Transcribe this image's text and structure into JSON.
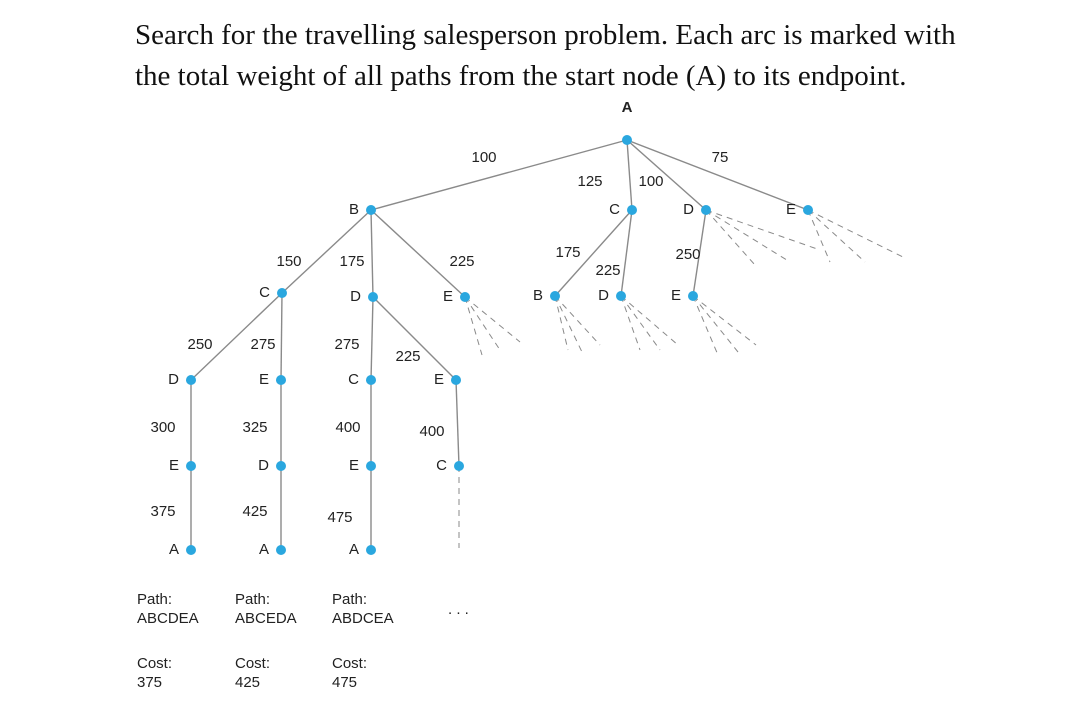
{
  "caption": {
    "line1": "Search for the travelling salesperson problem. Each arc is marked with",
    "line2": "the total weight of all paths from the start node (A) to its endpoint."
  },
  "nodes": [
    {
      "label": "A"
    },
    {
      "label": "B"
    },
    {
      "label": "C"
    },
    {
      "label": "D"
    },
    {
      "label": "E"
    },
    {
      "label": "C"
    },
    {
      "label": "D"
    },
    {
      "label": "E"
    },
    {
      "label": "B"
    },
    {
      "label": "D"
    },
    {
      "label": "E"
    },
    {
      "label": "D"
    },
    {
      "label": "E"
    },
    {
      "label": "C"
    },
    {
      "label": "E"
    },
    {
      "label": "E"
    },
    {
      "label": "D"
    },
    {
      "label": "E"
    },
    {
      "label": "C"
    },
    {
      "label": "A"
    },
    {
      "label": "A"
    },
    {
      "label": "A"
    }
  ],
  "edges": [
    {
      "weight": 100
    },
    {
      "weight": 125
    },
    {
      "weight": 100
    },
    {
      "weight": 75
    },
    {
      "weight": 150
    },
    {
      "weight": 175
    },
    {
      "weight": 225
    },
    {
      "weight": 175
    },
    {
      "weight": 225
    },
    {
      "weight": 250
    },
    {
      "weight": 250
    },
    {
      "weight": 275
    },
    {
      "weight": 275
    },
    {
      "weight": 225
    },
    {
      "weight": 300
    },
    {
      "weight": 325
    },
    {
      "weight": 400
    },
    {
      "weight": 400
    },
    {
      "weight": 375
    },
    {
      "weight": 425
    },
    {
      "weight": 475
    }
  ],
  "results": [
    {
      "path_label": "Path:",
      "path": "ABCDEA",
      "cost_label": "Cost:",
      "cost": 375
    },
    {
      "path_label": "Path:",
      "path": "ABCEDA",
      "cost_label": "Cost:",
      "cost": 425
    },
    {
      "path_label": "Path:",
      "path": "ABDCEA",
      "cost_label": "Cost:",
      "cost": 475
    }
  ],
  "ellipsis": ". . ."
}
